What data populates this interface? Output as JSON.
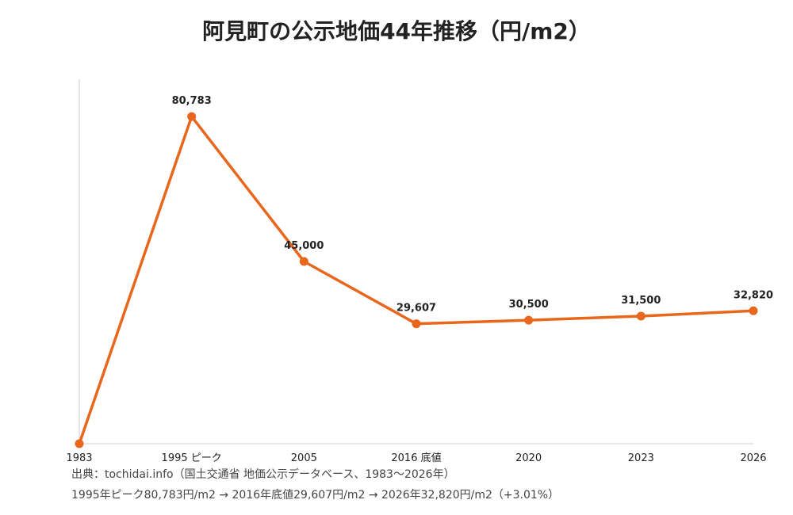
{
  "chart_data": {
    "type": "line",
    "title": "阿見町の公示地価44年推移（円/m2）",
    "categories": [
      "1983",
      "1995 ピーク",
      "2005",
      "2016 底値",
      "2020",
      "2023",
      "2026"
    ],
    "x_years": [
      1983,
      1995,
      2005,
      2016,
      2020,
      2023,
      2026
    ],
    "values": [
      0,
      80783,
      45000,
      29607,
      30500,
      31500,
      32820
    ],
    "data_labels": [
      "",
      "80,783",
      "45,000",
      "29,607",
      "30,500",
      "31,500",
      "32,820"
    ],
    "ylim": [
      0,
      90000
    ],
    "xlabel": "",
    "ylabel": "",
    "grid": false,
    "color": "#E8671C"
  },
  "footer": {
    "source": "出典：tochidai.info（国土交通省 地価公示データベース、1983〜2026年）",
    "summary": "1995年ピーク80,783円/m2 → 2016年底値29,607円/m2 → 2026年32,820円/m2（+3.01%）"
  }
}
